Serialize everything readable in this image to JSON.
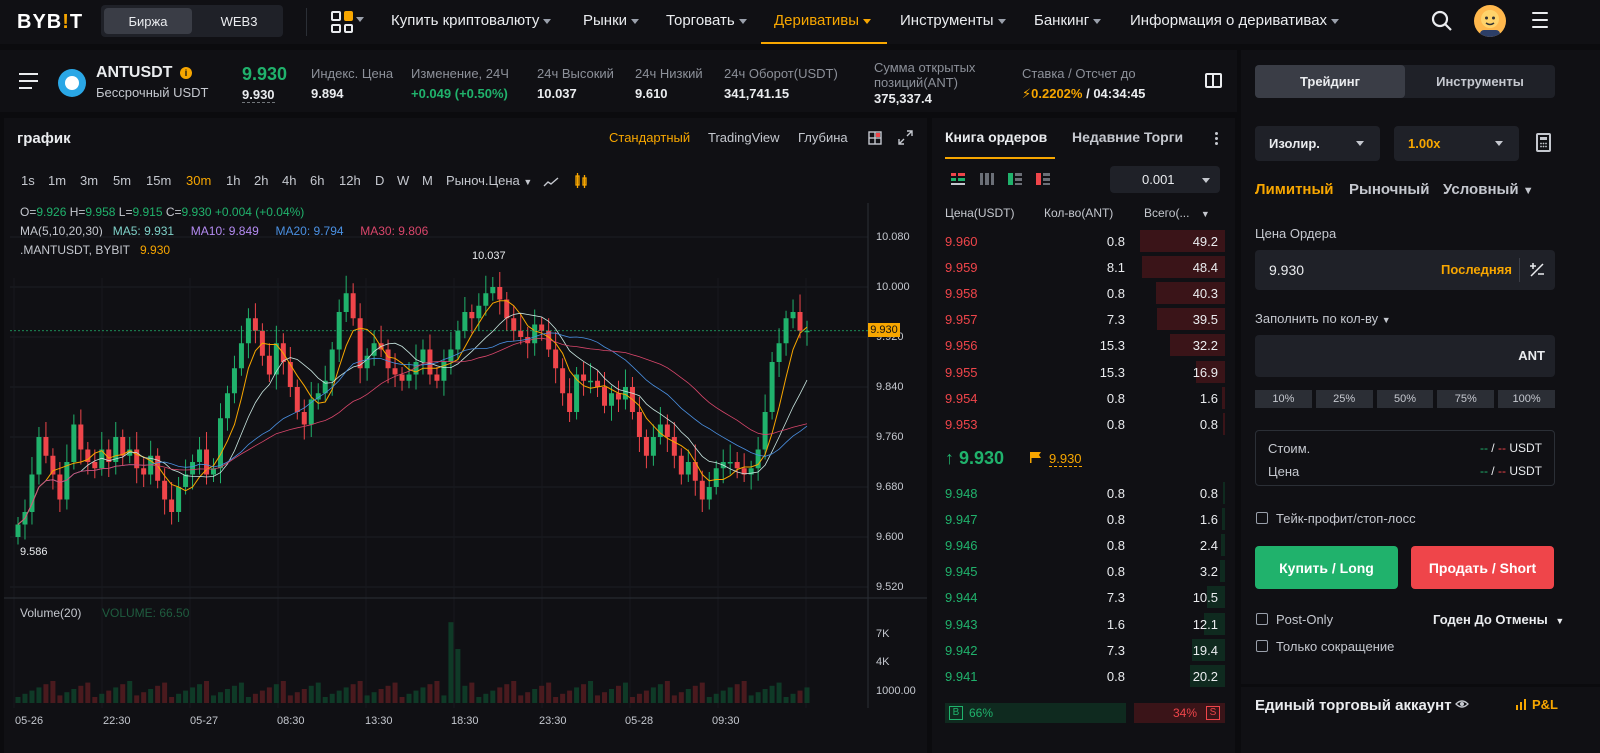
{
  "nav": {
    "logo_a": "BYB",
    "logo_b": "!",
    "logo_c": "T",
    "seg_exchange": "Биржа",
    "seg_web3": "WEB3",
    "items": [
      "Купить криптовалюту",
      "Рынки",
      "Торговать",
      "Деривативы",
      "Инструменты",
      "Банкинг",
      "Информация о деривативах"
    ]
  },
  "ticker": {
    "symbol": "ANTUSDT",
    "info": "i",
    "subtitle": "Бессрочный USDT",
    "last_price": "9.930",
    "mark_price": "9.930",
    "index_label": "Индекс. Цена",
    "index_value": "9.894",
    "change_label": "Изменение, 24Ч",
    "change_value": "+0.049 (+0.50%)",
    "high_label": "24ч Высокий",
    "high_value": "10.037",
    "low_label": "24ч Низкий",
    "low_value": "9.610",
    "turnover_label": "24ч Оборот(USDT)",
    "turnover_value": "341,741.15",
    "oi_label_1": "Сумма открытых",
    "oi_label_2": "позиций(ANT)",
    "oi_value": "375,337.4",
    "funding_label": "Ставка / Отсчет до",
    "funding_rate": "0.2202%",
    "funding_countdown": "/ 04:34:45"
  },
  "chart": {
    "title": "график",
    "tabs": [
      "Стандартный",
      "TradingView",
      "Глубина"
    ],
    "timeframes": [
      "1s",
      "1m",
      "3m",
      "5m",
      "15m",
      "30m",
      "1h",
      "2h",
      "4h",
      "6h",
      "12h",
      "D",
      "W",
      "M"
    ],
    "price_type": "Рыноч.Цена",
    "ohlc": {
      "o_lbl": "O=",
      "o": "9.926",
      "h_lbl": "H=",
      "h": "9.958",
      "l_lbl": "L=",
      "l": "9.915",
      "c_lbl": "C=",
      "c": "9.930",
      "chg": "+0.004 (+0.04%)"
    },
    "ma_line": {
      "label": "MA(5,10,20,30)",
      "ma5": "MA5: 9.931",
      "ma10": "MA10: 9.849",
      "ma20": "MA20: 9.794",
      "ma30": "MA30: 9.806"
    },
    "mark_line": ".MANTUSDT,  BYBIT",
    "mark_value": "9.930",
    "high_annot": "10.037",
    "low_annot": "9.586",
    "price_tag": "9.930",
    "volume_label": "Volume(20)",
    "volume_value": "VOLUME: 66.50",
    "colors": {
      "up": "#20b26c",
      "down": "#ef454a",
      "ma5": "#f7a600",
      "ma10": "#b48bf2",
      "ma20": "#4a90e2",
      "ma30": "#d9466b"
    }
  },
  "chart_data": {
    "type": "candlestick",
    "y_ticks": [
      "10.080",
      "10.000",
      "9.920",
      "9.840",
      "9.760",
      "9.680",
      "9.600",
      "9.520"
    ],
    "x_ticks": [
      "05-26",
      "22:30",
      "05-27",
      "08:30",
      "13:30",
      "18:30",
      "23:30",
      "05-28",
      "09:30"
    ],
    "volume_ticks": [
      "7K",
      "4K",
      "1000.00"
    ],
    "ylim": [
      9.5,
      10.12
    ],
    "highlighted": {
      "high": 10.037,
      "low": 9.586,
      "last": 9.93
    }
  },
  "orderbook": {
    "tab_book": "Книга ордеров",
    "tab_trades": "Недавние Торги",
    "tick": "0.001",
    "headers": {
      "price": "Цена(USDT)",
      "qty": "Кол-во(ANT)",
      "total": "Всего(..."
    },
    "asks": [
      {
        "p": "9.960",
        "q": "0.8",
        "t": "49.2",
        "d": 0.85
      },
      {
        "p": "9.959",
        "q": "8.1",
        "t": "48.4",
        "d": 0.83
      },
      {
        "p": "9.958",
        "q": "0.8",
        "t": "40.3",
        "d": 0.69
      },
      {
        "p": "9.957",
        "q": "7.3",
        "t": "39.5",
        "d": 0.68
      },
      {
        "p": "9.956",
        "q": "15.3",
        "t": "32.2",
        "d": 0.55
      },
      {
        "p": "9.955",
        "q": "15.3",
        "t": "16.9",
        "d": 0.29
      },
      {
        "p": "9.954",
        "q": "0.8",
        "t": "1.6",
        "d": 0.03
      },
      {
        "p": "9.953",
        "q": "0.8",
        "t": "0.8",
        "d": 0.015
      }
    ],
    "mid": "9.930",
    "mid_mark": "9.930",
    "bids": [
      {
        "p": "9.948",
        "q": "0.8",
        "t": "0.8",
        "d": 0.015
      },
      {
        "p": "9.947",
        "q": "0.8",
        "t": "1.6",
        "d": 0.03
      },
      {
        "p": "9.946",
        "q": "0.8",
        "t": "2.4",
        "d": 0.04
      },
      {
        "p": "9.945",
        "q": "0.8",
        "t": "3.2",
        "d": 0.055
      },
      {
        "p": "9.944",
        "q": "7.3",
        "t": "10.5",
        "d": 0.18
      },
      {
        "p": "9.943",
        "q": "1.6",
        "t": "12.1",
        "d": 0.21
      },
      {
        "p": "9.942",
        "q": "7.3",
        "t": "19.4",
        "d": 0.33
      },
      {
        "p": "9.941",
        "q": "0.8",
        "t": "20.2",
        "d": 0.35
      }
    ],
    "buy_badge": "B",
    "buy_pct": "66%",
    "sell_pct": "34%",
    "sell_badge": "S",
    "buy_fraction": 0.66
  },
  "trade": {
    "tab_trading": "Трейдинг",
    "tab_tools": "Инструменты",
    "margin_mode": "Изолир.",
    "leverage": "1.00x",
    "order_types": [
      "Лимитный",
      "Рыночный",
      "Условный"
    ],
    "price_label": "Цена Ордера",
    "price_value": "9.930",
    "price_last": "Последняя",
    "qty_label": "Заполнить по кол-ву",
    "qty_unit": "ANT",
    "percents": [
      "10%",
      "25%",
      "50%",
      "75%",
      "100%"
    ],
    "cost_label": "Стоим.",
    "cost_value_a": "--",
    "cost_slash": "/",
    "cost_value_b": "--",
    "cost_unit": "USDT",
    "price2_label": "Цена",
    "tpsl": "Тейк-профит/стоп-лосс",
    "buy_btn": "Купить / Long",
    "sell_btn": "Продать / Short",
    "post_only": "Post-Only",
    "tif": "Годен До Отмены",
    "reduce_only": "Только сокращение",
    "account_title": "Единый торговый аккаунт",
    "pnl": "P&L"
  }
}
